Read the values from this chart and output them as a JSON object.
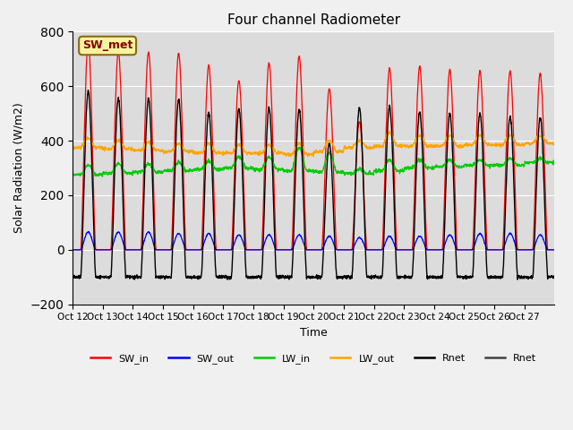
{
  "title": "Four channel Radiometer",
  "xlabel": "Time",
  "ylabel": "Solar Radiation (W/m2)",
  "ylim": [
    -200,
    800
  ],
  "background_color": "#dcdcdc",
  "annotation_text": "SW_met",
  "annotation_box_color": "#f5f5a0",
  "annotation_border_color": "#8b6914",
  "x_tick_labels": [
    "Oct 12",
    "Oct 13",
    "Oct 14",
    "Oct 15",
    "Oct 16",
    "Oct 17",
    "Oct 18",
    "Oct 19",
    "Oct 20",
    "Oct 21",
    "Oct 22",
    "Oct 23",
    "Oct 24",
    "Oct 25",
    "Oct 26",
    "Oct 27"
  ],
  "legend_entries": [
    {
      "label": "SW_in",
      "color": "#ff0000"
    },
    {
      "label": "SW_out",
      "color": "#0000ff"
    },
    {
      "label": "LW_in",
      "color": "#00cc00"
    },
    {
      "label": "LW_out",
      "color": "#ffa500"
    },
    {
      "label": "Rnet",
      "color": "#000000"
    },
    {
      "label": "Rnet",
      "color": "#444444"
    }
  ],
  "num_days": 16,
  "points_per_day": 144,
  "sw_in_day_peak": [
    760,
    725,
    725,
    720,
    675,
    620,
    685,
    710,
    590,
    470,
    665,
    670,
    660,
    655,
    655,
    645
  ],
  "sw_out_day_peak": [
    65,
    65,
    65,
    60,
    60,
    55,
    55,
    55,
    50,
    45,
    50,
    50,
    55,
    60,
    60,
    55
  ],
  "lw_in_base": [
    275,
    280,
    285,
    290,
    295,
    300,
    295,
    290,
    285,
    280,
    290,
    300,
    305,
    310,
    310,
    320
  ],
  "lw_in_day_peak": [
    310,
    315,
    315,
    320,
    325,
    340,
    340,
    375,
    355,
    295,
    330,
    330,
    330,
    330,
    335,
    335
  ],
  "lw_out_base": [
    375,
    370,
    365,
    360,
    355,
    355,
    355,
    350,
    360,
    375,
    380,
    380,
    380,
    385,
    385,
    390
  ],
  "lw_out_day_peak": [
    410,
    400,
    395,
    390,
    390,
    385,
    385,
    390,
    400,
    400,
    430,
    420,
    420,
    420,
    420,
    420
  ],
  "rnet_day_peak": [
    580,
    555,
    555,
    550,
    500,
    515,
    520,
    515,
    390,
    520,
    525,
    505,
    500,
    500,
    490,
    485
  ],
  "rnet_night": -100
}
